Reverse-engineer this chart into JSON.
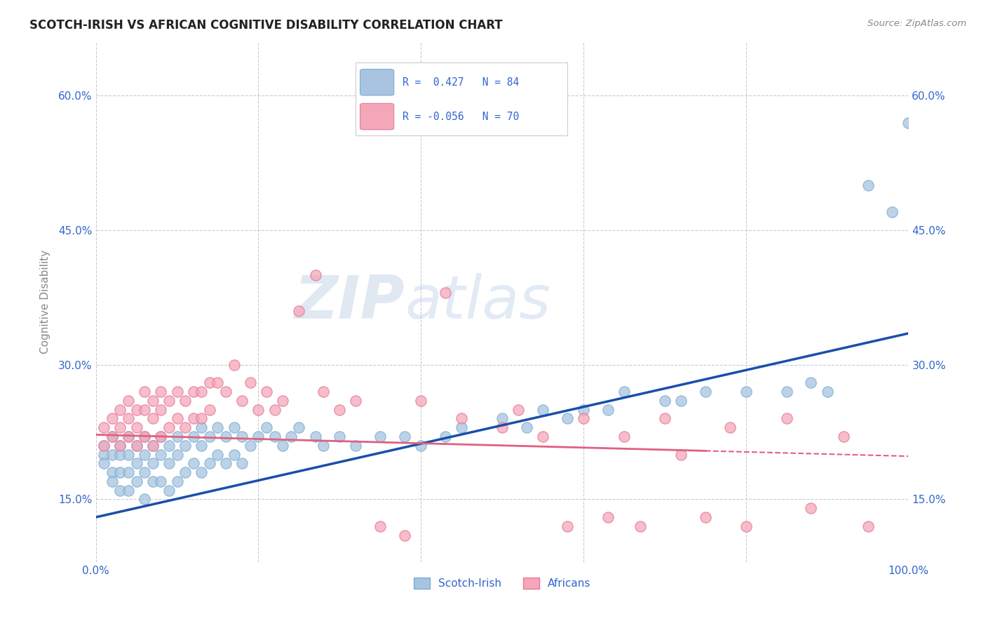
{
  "title": "SCOTCH-IRISH VS AFRICAN COGNITIVE DISABILITY CORRELATION CHART",
  "source": "Source: ZipAtlas.com",
  "ylabel": "Cognitive Disability",
  "xlim": [
    0,
    1.0
  ],
  "ylim": [
    0.08,
    0.66
  ],
  "xticks": [
    0.0,
    1.0
  ],
  "xtick_labels": [
    "0.0%",
    "100.0%"
  ],
  "yticks": [
    0.15,
    0.3,
    0.45,
    0.6
  ],
  "ytick_labels": [
    "15.0%",
    "30.0%",
    "45.0%",
    "60.0%"
  ],
  "scotch_irish_color": "#a8c4e0",
  "scotch_irish_edge": "#7aafd4",
  "africans_color": "#f4a7b9",
  "africans_edge": "#e87898",
  "scotch_irish_line_color": "#1a4faa",
  "africans_line_color": "#e06080",
  "legend_text_color": "#3366cc",
  "R_scotch": 0.427,
  "N_scotch": 84,
  "R_african": -0.056,
  "N_african": 70,
  "background_color": "#ffffff",
  "grid_color": "#cccccc",
  "watermark_zip": "ZIP",
  "watermark_atlas": "atlas",
  "si_line_x0": 0.0,
  "si_line_y0": 0.13,
  "si_line_x1": 1.0,
  "si_line_y1": 0.335,
  "af_line_x0": 0.0,
  "af_line_y0": 0.222,
  "af_line_x1": 1.0,
  "af_line_y1": 0.198,
  "scotch_irish_x": [
    0.01,
    0.01,
    0.01,
    0.02,
    0.02,
    0.02,
    0.02,
    0.03,
    0.03,
    0.03,
    0.03,
    0.04,
    0.04,
    0.04,
    0.04,
    0.05,
    0.05,
    0.05,
    0.06,
    0.06,
    0.06,
    0.06,
    0.07,
    0.07,
    0.07,
    0.08,
    0.08,
    0.08,
    0.09,
    0.09,
    0.09,
    0.1,
    0.1,
    0.1,
    0.11,
    0.11,
    0.12,
    0.12,
    0.13,
    0.13,
    0.13,
    0.14,
    0.14,
    0.15,
    0.15,
    0.16,
    0.16,
    0.17,
    0.17,
    0.18,
    0.18,
    0.19,
    0.2,
    0.21,
    0.22,
    0.23,
    0.24,
    0.25,
    0.27,
    0.28,
    0.3,
    0.32,
    0.35,
    0.38,
    0.4,
    0.43,
    0.45,
    0.5,
    0.53,
    0.55,
    0.58,
    0.6,
    0.63,
    0.65,
    0.7,
    0.72,
    0.75,
    0.8,
    0.85,
    0.88,
    0.9,
    0.95,
    0.98,
    1.0
  ],
  "scotch_irish_y": [
    0.21,
    0.2,
    0.19,
    0.22,
    0.2,
    0.18,
    0.17,
    0.21,
    0.2,
    0.18,
    0.16,
    0.22,
    0.2,
    0.18,
    0.16,
    0.21,
    0.19,
    0.17,
    0.22,
    0.2,
    0.18,
    0.15,
    0.21,
    0.19,
    0.17,
    0.22,
    0.2,
    0.17,
    0.21,
    0.19,
    0.16,
    0.22,
    0.2,
    0.17,
    0.21,
    0.18,
    0.22,
    0.19,
    0.23,
    0.21,
    0.18,
    0.22,
    0.19,
    0.23,
    0.2,
    0.22,
    0.19,
    0.23,
    0.2,
    0.22,
    0.19,
    0.21,
    0.22,
    0.23,
    0.22,
    0.21,
    0.22,
    0.23,
    0.22,
    0.21,
    0.22,
    0.21,
    0.22,
    0.22,
    0.21,
    0.22,
    0.23,
    0.24,
    0.23,
    0.25,
    0.24,
    0.25,
    0.25,
    0.27,
    0.26,
    0.26,
    0.27,
    0.27,
    0.27,
    0.28,
    0.27,
    0.5,
    0.47,
    0.57
  ],
  "africans_x": [
    0.01,
    0.01,
    0.02,
    0.02,
    0.03,
    0.03,
    0.03,
    0.04,
    0.04,
    0.04,
    0.05,
    0.05,
    0.05,
    0.06,
    0.06,
    0.06,
    0.07,
    0.07,
    0.07,
    0.08,
    0.08,
    0.08,
    0.09,
    0.09,
    0.1,
    0.1,
    0.11,
    0.11,
    0.12,
    0.12,
    0.13,
    0.13,
    0.14,
    0.14,
    0.15,
    0.16,
    0.17,
    0.18,
    0.19,
    0.2,
    0.21,
    0.22,
    0.23,
    0.25,
    0.27,
    0.28,
    0.3,
    0.32,
    0.35,
    0.38,
    0.4,
    0.43,
    0.45,
    0.5,
    0.52,
    0.55,
    0.58,
    0.6,
    0.63,
    0.65,
    0.67,
    0.7,
    0.72,
    0.75,
    0.78,
    0.8,
    0.85,
    0.88,
    0.92,
    0.95
  ],
  "africans_y": [
    0.23,
    0.21,
    0.24,
    0.22,
    0.25,
    0.23,
    0.21,
    0.26,
    0.24,
    0.22,
    0.25,
    0.23,
    0.21,
    0.27,
    0.25,
    0.22,
    0.26,
    0.24,
    0.21,
    0.27,
    0.25,
    0.22,
    0.26,
    0.23,
    0.27,
    0.24,
    0.26,
    0.23,
    0.27,
    0.24,
    0.27,
    0.24,
    0.28,
    0.25,
    0.28,
    0.27,
    0.3,
    0.26,
    0.28,
    0.25,
    0.27,
    0.25,
    0.26,
    0.36,
    0.4,
    0.27,
    0.25,
    0.26,
    0.12,
    0.11,
    0.26,
    0.38,
    0.24,
    0.23,
    0.25,
    0.22,
    0.12,
    0.24,
    0.13,
    0.22,
    0.12,
    0.24,
    0.2,
    0.13,
    0.23,
    0.12,
    0.24,
    0.14,
    0.22,
    0.12
  ]
}
